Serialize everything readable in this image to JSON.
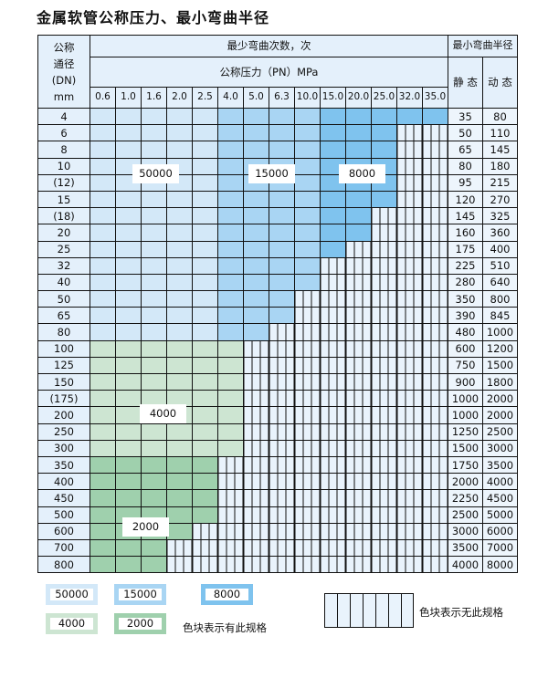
{
  "title": "金属软管公称压力、最小弯曲半径",
  "header": {
    "dn_lines": [
      "公称",
      "通径",
      "(DN)",
      "mm"
    ],
    "bend_count": "最少弯曲次数，次",
    "min_radius": "最小弯曲半径",
    "pressure": "公称压力（PN）MPa",
    "static": "静 态",
    "dynamic": "动 态",
    "pressures": [
      "0.6",
      "1.0",
      "1.6",
      "2.0",
      "2.5",
      "4.0",
      "5.0",
      "6.3",
      "10.0",
      "15.0",
      "20.0",
      "25.0",
      "32.0",
      "35.0"
    ]
  },
  "colors": {
    "c50000": "#d3e8f8",
    "c15000": "#a9d5f3",
    "c8000": "#7fc3ee",
    "c4000": "#cde5d2",
    "c2000": "#9fd0ad"
  },
  "rows": [
    {
      "dn": "4",
      "n": 14,
      "g": "blue",
      "s": "35",
      "d": "80"
    },
    {
      "dn": "6",
      "n": 12,
      "g": "blue",
      "s": "50",
      "d": "110"
    },
    {
      "dn": "8",
      "n": 12,
      "g": "blue",
      "s": "65",
      "d": "145"
    },
    {
      "dn": "10",
      "n": 12,
      "g": "blue",
      "s": "80",
      "d": "180"
    },
    {
      "dn": "(12)",
      "n": 12,
      "g": "blue",
      "s": "95",
      "d": "215"
    },
    {
      "dn": "15",
      "n": 12,
      "g": "blue",
      "s": "120",
      "d": "270"
    },
    {
      "dn": "(18)",
      "n": 11,
      "g": "blue",
      "s": "145",
      "d": "325"
    },
    {
      "dn": "20",
      "n": 11,
      "g": "blue",
      "s": "160",
      "d": "360"
    },
    {
      "dn": "25",
      "n": 10,
      "g": "blue",
      "s": "175",
      "d": "400"
    },
    {
      "dn": "32",
      "n": 9,
      "g": "blue",
      "s": "225",
      "d": "510"
    },
    {
      "dn": "40",
      "n": 9,
      "g": "blue",
      "s": "280",
      "d": "640"
    },
    {
      "dn": "50",
      "n": 8,
      "g": "blue",
      "s": "350",
      "d": "800"
    },
    {
      "dn": "65",
      "n": 8,
      "g": "blue",
      "s": "390",
      "d": "845"
    },
    {
      "dn": "80",
      "n": 7,
      "g": "blue",
      "s": "480",
      "d": "1000"
    },
    {
      "dn": "100",
      "n": 6,
      "g": "c4000",
      "s": "600",
      "d": "1200"
    },
    {
      "dn": "125",
      "n": 6,
      "g": "c4000",
      "s": "750",
      "d": "1500"
    },
    {
      "dn": "150",
      "n": 6,
      "g": "c4000",
      "s": "900",
      "d": "1800"
    },
    {
      "dn": "(175)",
      "n": 6,
      "g": "c4000",
      "s": "1000",
      "d": "2000"
    },
    {
      "dn": "200",
      "n": 6,
      "g": "c4000",
      "s": "1000",
      "d": "2000"
    },
    {
      "dn": "250",
      "n": 6,
      "g": "c4000",
      "s": "1250",
      "d": "2500"
    },
    {
      "dn": "300",
      "n": 6,
      "g": "c4000",
      "s": "1500",
      "d": "3000"
    },
    {
      "dn": "350",
      "n": 5,
      "g": "c2000",
      "s": "1750",
      "d": "3500"
    },
    {
      "dn": "400",
      "n": 5,
      "g": "c2000",
      "s": "2000",
      "d": "4000"
    },
    {
      "dn": "450",
      "n": 5,
      "g": "c2000",
      "s": "2250",
      "d": "4500"
    },
    {
      "dn": "500",
      "n": 5,
      "g": "c2000",
      "s": "2500",
      "d": "5000"
    },
    {
      "dn": "600",
      "n": 4,
      "g": "c2000",
      "s": "3000",
      "d": "6000"
    },
    {
      "dn": "700",
      "n": 3,
      "g": "c2000",
      "s": "3500",
      "d": "7000"
    },
    {
      "dn": "800",
      "n": 3,
      "g": "c2000",
      "s": "4000",
      "d": "8000"
    }
  ],
  "labels": {
    "l50000": "50000",
    "l15000": "15000",
    "l8000": "8000",
    "l4000": "4000",
    "l2000": "2000"
  },
  "legend": {
    "exists_text": "色块表示有此规格",
    "none_text": "色块表示无此规格"
  }
}
